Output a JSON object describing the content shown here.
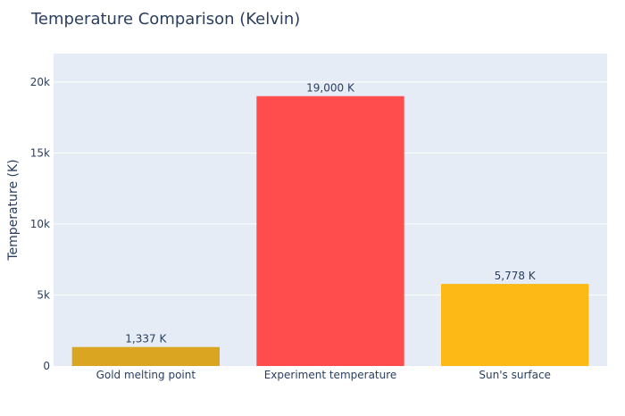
{
  "chart_data": {
    "type": "bar",
    "title": "Temperature Comparison (Kelvin)",
    "xlabel": "",
    "ylabel": "Temperature (K)",
    "categories": [
      "Gold melting point",
      "Experiment temperature",
      "Sun's surface"
    ],
    "values": [
      1337,
      19000,
      5778
    ],
    "data_labels": [
      "1,337 K",
      "19,000 K",
      "5,778 K"
    ],
    "colors": [
      "#DAA520",
      "#FF4C4C",
      "#FDB915"
    ],
    "ylim": [
      0,
      22000
    ],
    "yticks": [
      0,
      5000,
      10000,
      15000,
      20000
    ],
    "ytick_labels": [
      "0",
      "5k",
      "10k",
      "15k",
      "20k"
    ],
    "grid": true,
    "legend": "none",
    "plot_bg": "#E5ECF6",
    "text_color": "#2a3f5f"
  }
}
